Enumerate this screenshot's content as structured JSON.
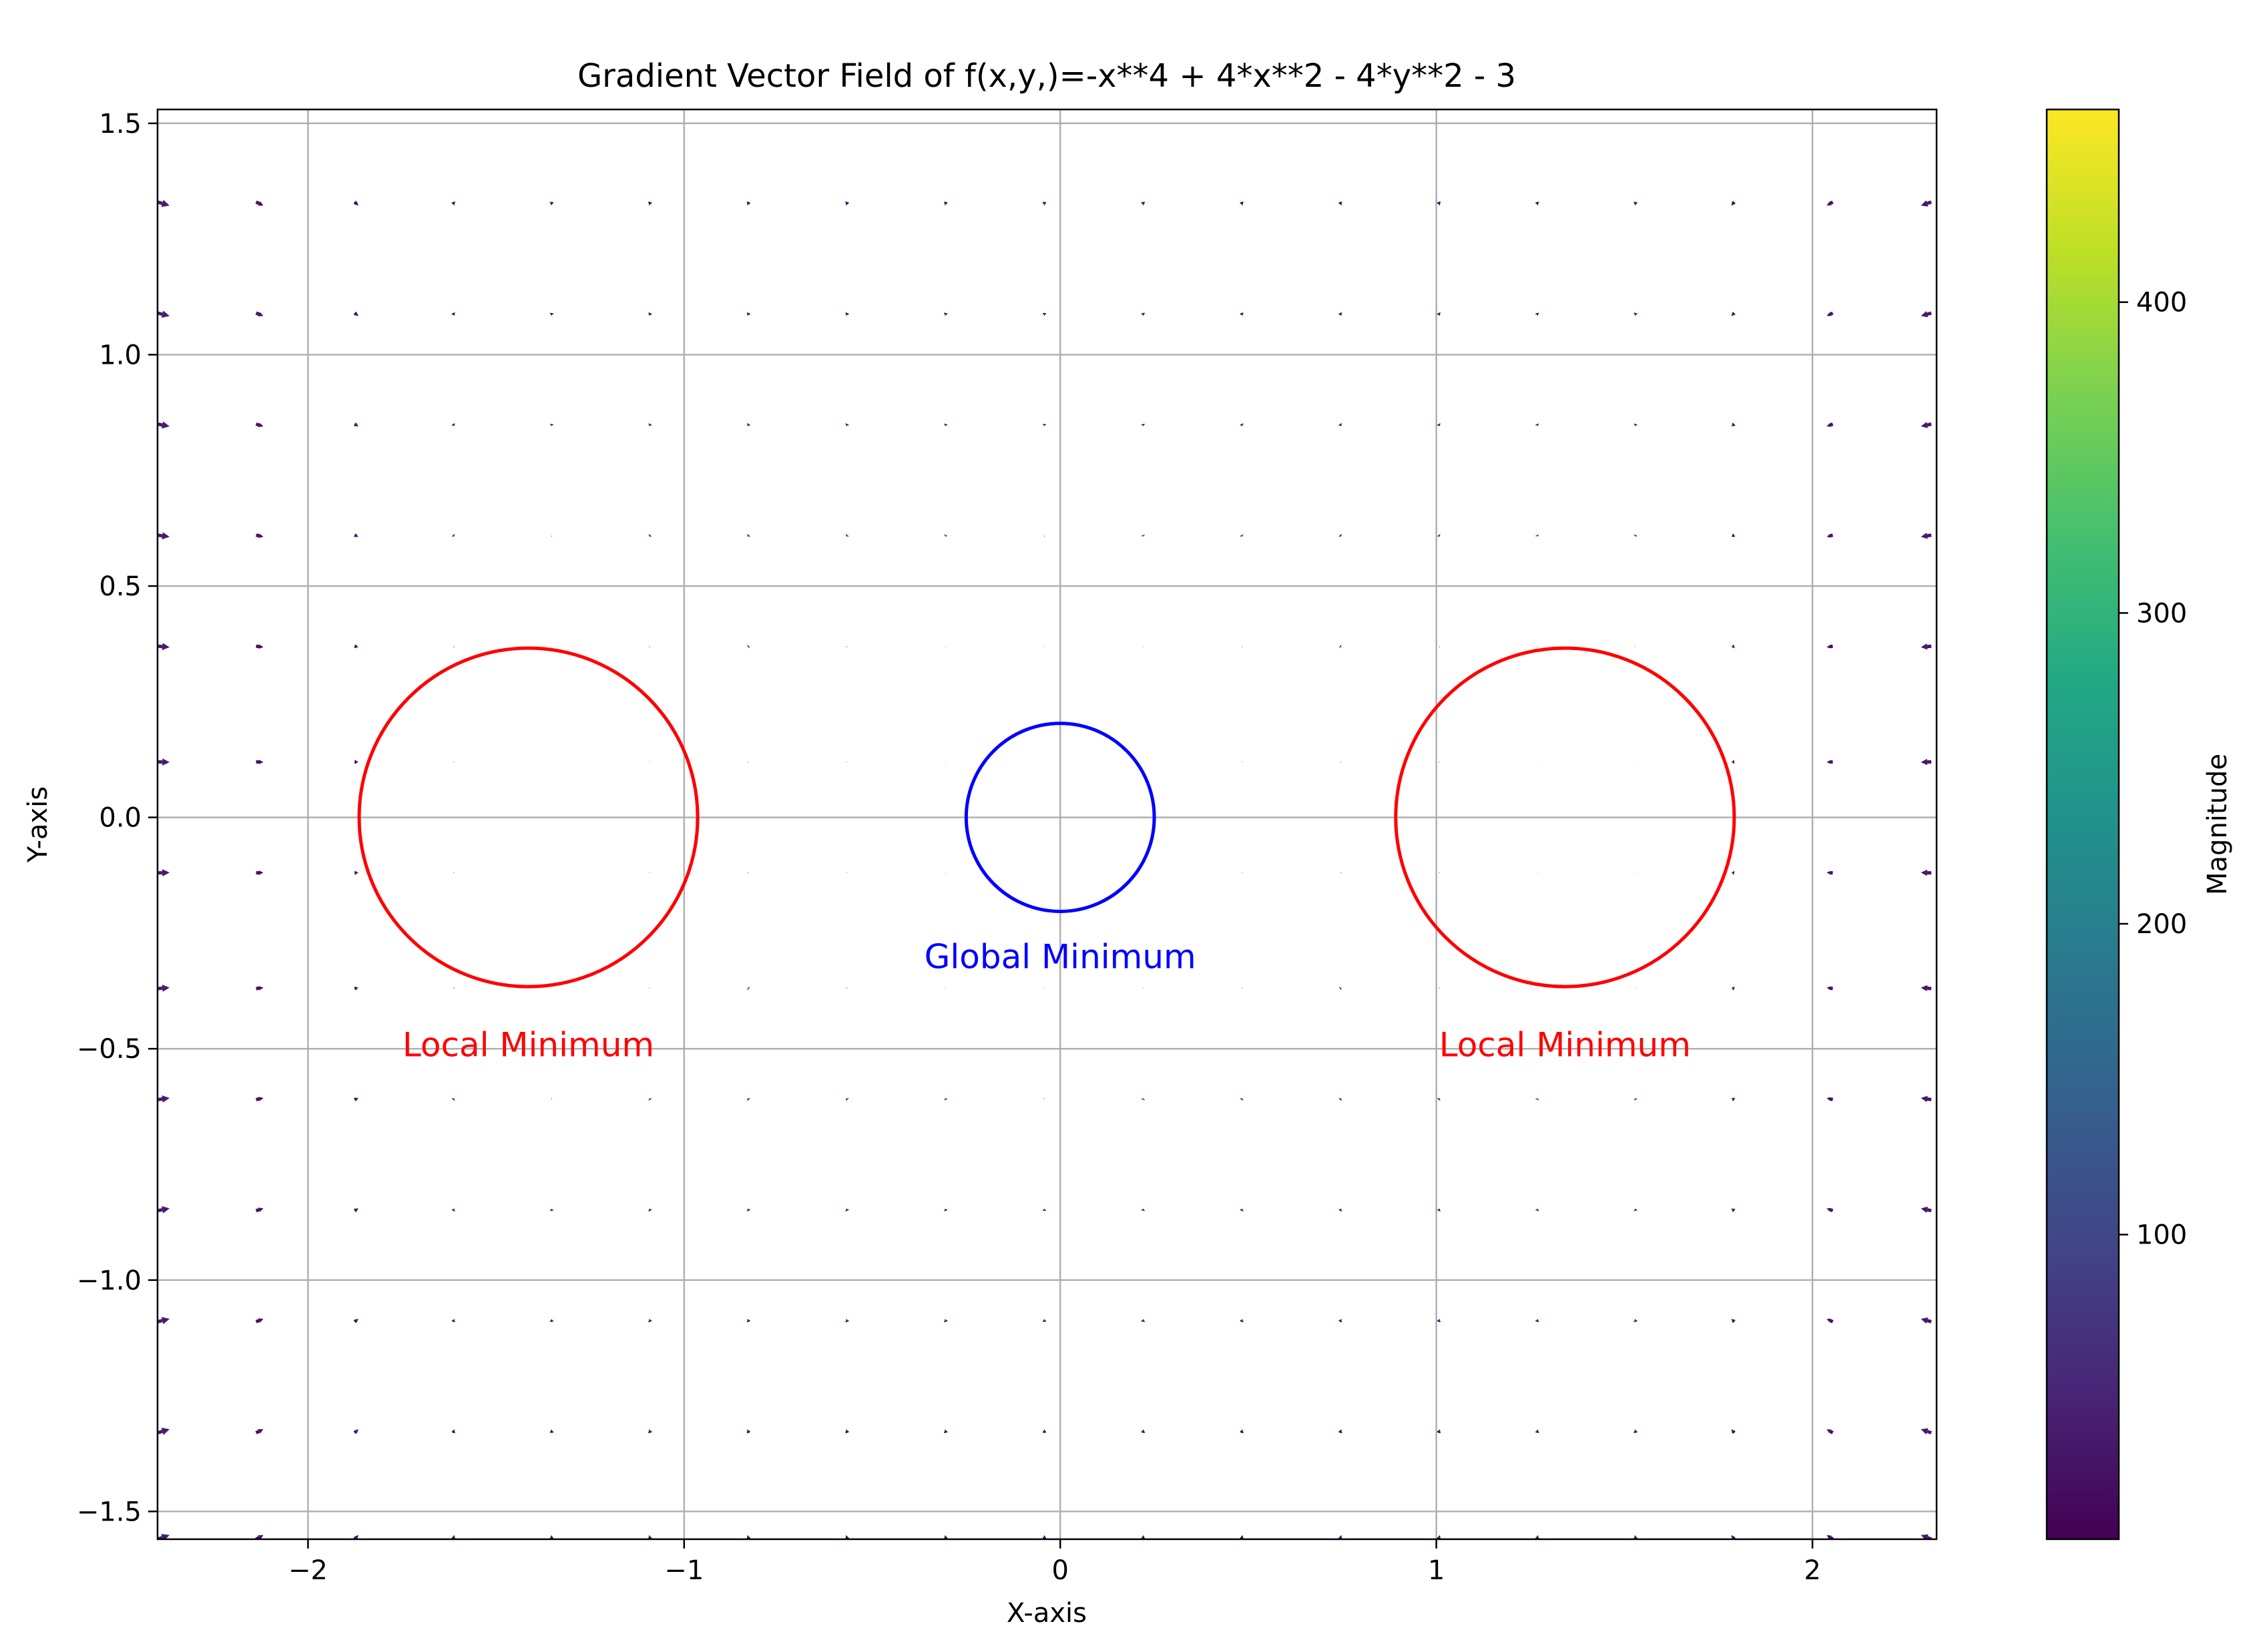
{
  "chart_data": {
    "type": "quiver",
    "title": "Gradient Vector Field of f(x,y,)=-x**4 + 4*x**2 - 4*y**2 - 3",
    "xlabel": "X-axis",
    "ylabel": "Y-axis",
    "xlim": [
      -2.4,
      2.33
    ],
    "ylim": [
      -1.56,
      1.53
    ],
    "xticks": [
      -2,
      -1,
      0,
      1,
      2
    ],
    "xtick_labels": [
      "−2",
      "−1",
      "0",
      "1",
      "2"
    ],
    "yticks": [
      -1.5,
      -1.0,
      -0.5,
      0.0,
      0.5,
      1.0,
      1.5
    ],
    "ytick_labels": [
      "−1.5",
      "−1.0",
      "−0.5",
      "0.0",
      "0.5",
      "1.0",
      "1.5"
    ],
    "grid": true,
    "function": "f(x,y) = -x^4 + 4x^2 - 4y^2 - 3",
    "grid_x": [
      -2.4,
      -2.138,
      -1.876,
      -1.614,
      -1.352,
      -1.09,
      -0.828,
      -0.566,
      -0.304,
      -0.042,
      0.22,
      0.482,
      0.744,
      1.006,
      1.268,
      1.53,
      1.792,
      2.054,
      2.316
    ],
    "grid_y": [
      -1.56,
      -1.33,
      -1.09,
      -0.85,
      -0.61,
      -0.37,
      -0.12,
      0.12,
      0.37,
      0.61,
      0.85,
      1.09,
      1.33
    ],
    "colorbar": {
      "label": "Magnitude",
      "range": [
        2,
        462
      ],
      "ticks": [
        100,
        200,
        300,
        400
      ],
      "tick_labels": [
        "100",
        "200",
        "300",
        "400"
      ]
    },
    "annotations": [
      {
        "type": "circle",
        "cx": -1.414,
        "cy": 0.0,
        "r": 0.45,
        "color": "#ff0000",
        "label": "Local Minimum",
        "label_x": -1.414,
        "label_y": -0.49
      },
      {
        "type": "circle",
        "cx": 1.342,
        "cy": 0.0,
        "r": 0.45,
        "color": "#ff0000",
        "label": "Local Minimum",
        "label_x": 1.342,
        "label_y": -0.49
      },
      {
        "type": "circle",
        "cx": 0.0,
        "cy": 0.0,
        "r": 0.25,
        "color": "#0000ff",
        "label": "Global Minimum",
        "label_x": 0.0,
        "label_y": -0.3
      }
    ]
  }
}
